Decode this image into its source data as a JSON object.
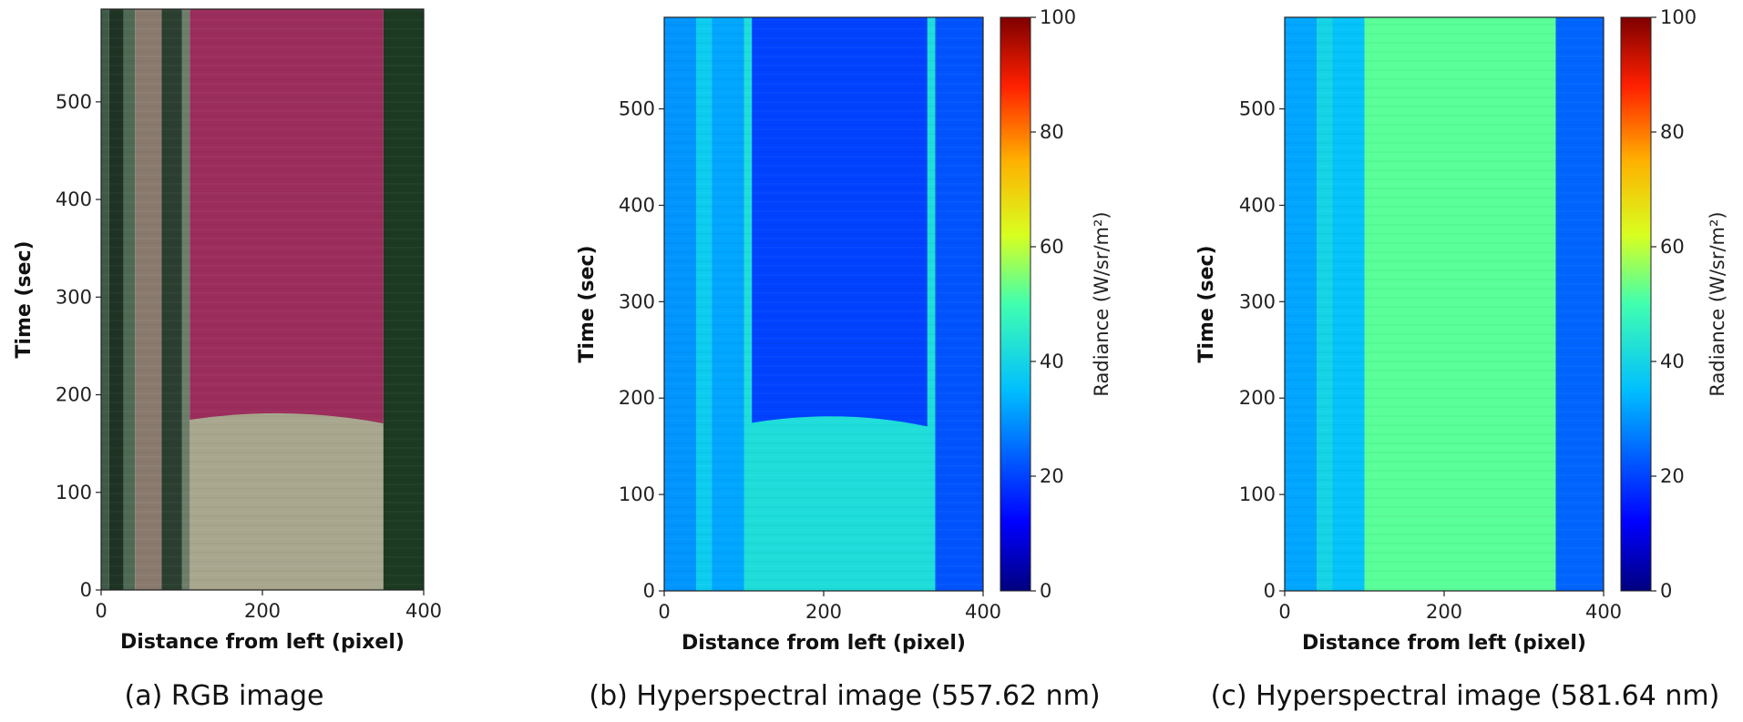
{
  "chart_data": [
    {
      "type": "heatmap",
      "caption": "(a) RGB image",
      "xlabel": "Distance from left (pixel)",
      "ylabel": "Time (sec)",
      "xlim": [
        0,
        400
      ],
      "ylim": [
        0,
        595
      ],
      "xticks": [
        "0",
        "200",
        "400"
      ],
      "yticks": [
        "0",
        "100",
        "200",
        "300",
        "400",
        "500"
      ],
      "bands": [
        {
          "x0": 0,
          "x1": 10,
          "color": "#3f5a48"
        },
        {
          "x0": 10,
          "x1": 28,
          "color": "#1f3325"
        },
        {
          "x0": 28,
          "x1": 42,
          "color": "#4e6a55"
        },
        {
          "x0": 42,
          "x1": 75,
          "color": "#8a7a6e"
        },
        {
          "x0": 75,
          "x1": 100,
          "color": "#2a3f30"
        },
        {
          "x0": 100,
          "x1": 110,
          "color": "#6c7e6a"
        },
        {
          "x0": 110,
          "x1": 350,
          "color": "#a8a78e"
        },
        {
          "x0": 350,
          "x1": 400,
          "color": "#1c3a22"
        }
      ],
      "overlay": {
        "x0": 110,
        "x1": 350,
        "t_start": 180,
        "color": "#9b2d5c",
        "label_colors": "magenta region above ~180 s"
      }
    },
    {
      "type": "heatmap",
      "caption": "(b) Hyperspectral image (557.62 nm)",
      "xlabel": "Distance from left (pixel)",
      "ylabel": "Time (sec)",
      "colorbar_label": "Radiance (W/sr/m²)",
      "colorbar_ticks": [
        "0",
        "20",
        "40",
        "60",
        "80",
        "100"
      ],
      "clim": [
        0,
        100
      ],
      "xlim": [
        0,
        400
      ],
      "ylim": [
        0,
        595
      ],
      "xticks": [
        "0",
        "200",
        "400"
      ],
      "yticks": [
        "0",
        "100",
        "200",
        "300",
        "400",
        "500"
      ],
      "bands": [
        {
          "x0": 0,
          "x1": 40,
          "value": 30
        },
        {
          "x0": 40,
          "x1": 60,
          "value": 38
        },
        {
          "x0": 60,
          "x1": 100,
          "value": 32
        },
        {
          "x0": 100,
          "x1": 340,
          "value": 42
        },
        {
          "x0": 340,
          "x1": 400,
          "value": 22
        }
      ],
      "overlay": {
        "x0": 110,
        "x1": 330,
        "t_start": 180,
        "value": 20
      }
    },
    {
      "type": "heatmap",
      "caption": "(c) Hyperspectral image (581.64 nm)",
      "xlabel": "Distance from left (pixel)",
      "ylabel": "Time (sec)",
      "colorbar_label": "Radiance (W/sr/m²)",
      "colorbar_ticks": [
        "0",
        "20",
        "40",
        "60",
        "80",
        "100"
      ],
      "clim": [
        0,
        100
      ],
      "xlim": [
        0,
        400
      ],
      "ylim": [
        0,
        595
      ],
      "xticks": [
        "0",
        "200",
        "400"
      ],
      "yticks": [
        "0",
        "100",
        "200",
        "300",
        "400",
        "500"
      ],
      "bands": [
        {
          "x0": 0,
          "x1": 40,
          "value": 32
        },
        {
          "x0": 40,
          "x1": 60,
          "value": 40
        },
        {
          "x0": 60,
          "x1": 100,
          "value": 36
        },
        {
          "x0": 100,
          "x1": 340,
          "value": 52
        },
        {
          "x0": 340,
          "x1": 400,
          "value": 24
        }
      ],
      "overlay": null
    }
  ]
}
